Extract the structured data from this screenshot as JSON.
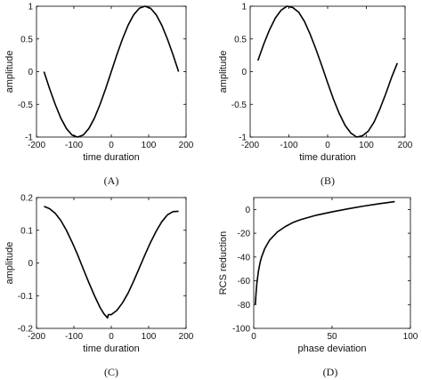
{
  "chart_data": [
    {
      "type": "line",
      "panel_label": "(A)",
      "xlabel": "time duration",
      "ylabel": "amplitude",
      "xlim": [
        -200,
        200
      ],
      "ylim": [
        -1,
        1
      ],
      "xticks": [
        -200,
        -100,
        0,
        100,
        200
      ],
      "yticks": [
        -1,
        -0.5,
        0,
        0.5,
        1
      ],
      "xtick_labels": [
        "-200",
        "-100",
        "0",
        "100",
        "200"
      ],
      "ytick_labels": [
        "-1",
        "-0.5",
        "0",
        "0.5",
        "1"
      ],
      "grid": false,
      "series": [
        {
          "x": [
            -180,
            -165,
            -150,
            -135,
            -120,
            -105,
            -90,
            -75,
            -60,
            -45,
            -30,
            -15,
            0,
            15,
            30,
            45,
            60,
            75,
            90,
            105,
            120,
            135,
            150,
            165,
            180
          ],
          "y": [
            0,
            -0.26,
            -0.5,
            -0.71,
            -0.87,
            -0.97,
            -1,
            -0.97,
            -0.87,
            -0.71,
            -0.5,
            -0.26,
            0,
            0.26,
            0.5,
            0.71,
            0.87,
            0.97,
            1,
            0.97,
            0.87,
            0.71,
            0.5,
            0.26,
            0
          ]
        }
      ]
    },
    {
      "type": "line",
      "panel_label": "(B)",
      "xlabel": "time duration",
      "ylabel": "amplitude",
      "xlim": [
        -200,
        200
      ],
      "ylim": [
        -1,
        1
      ],
      "xticks": [
        -200,
        -100,
        0,
        100,
        200
      ],
      "yticks": [
        -1,
        -0.5,
        0,
        0.5,
        1
      ],
      "xtick_labels": [
        "-200",
        "-100",
        "0",
        "100",
        "200"
      ],
      "ytick_labels": [
        "-1",
        "-0.5",
        "0",
        "0.5",
        "1"
      ],
      "grid": false,
      "series": [
        {
          "x": [
            -180,
            -165,
            -150,
            -135,
            -120,
            -105,
            -90,
            -75,
            -60,
            -45,
            -30,
            -15,
            0,
            15,
            30,
            45,
            60,
            75,
            90,
            105,
            120,
            135,
            150,
            165,
            180
          ],
          "y": [
            0.17,
            0.42,
            0.64,
            0.82,
            0.94,
            1,
            0.98,
            0.91,
            0.77,
            0.57,
            0.34,
            0.09,
            -0.17,
            -0.42,
            -0.64,
            -0.82,
            -0.94,
            -1,
            -0.98,
            -0.91,
            -0.77,
            -0.57,
            -0.34,
            -0.09,
            0.13
          ]
        }
      ]
    },
    {
      "type": "line",
      "panel_label": "(C)",
      "xlabel": "time duration",
      "ylabel": "amplitude",
      "xlim": [
        -200,
        200
      ],
      "ylim": [
        -0.2,
        0.2
      ],
      "xticks": [
        -200,
        -100,
        0,
        100,
        200
      ],
      "yticks": [
        -0.2,
        -0.1,
        0,
        0.1,
        0.2
      ],
      "xtick_labels": [
        "-200",
        "-100",
        "0",
        "100",
        "200"
      ],
      "ytick_labels": [
        "-0.2",
        "-0.1",
        "0",
        "0.1",
        "0.2"
      ],
      "grid": false,
      "series": [
        {
          "x": [
            -180,
            -165,
            -150,
            -135,
            -120,
            -105,
            -90,
            -75,
            -60,
            -45,
            -30,
            -20,
            -10,
            -8,
            0,
            15,
            30,
            45,
            60,
            75,
            90,
            105,
            120,
            135,
            150,
            165,
            180
          ],
          "y": [
            0.173,
            0.166,
            0.152,
            0.13,
            0.1,
            0.064,
            0.025,
            -0.018,
            -0.06,
            -0.1,
            -0.136,
            -0.155,
            -0.168,
            -0.158,
            -0.158,
            -0.145,
            -0.122,
            -0.092,
            -0.055,
            -0.015,
            0.025,
            0.063,
            0.097,
            0.126,
            0.147,
            0.157,
            0.158
          ]
        }
      ]
    },
    {
      "type": "line",
      "panel_label": "(D)",
      "xlabel": "phase deviation",
      "ylabel": "RCS reduction",
      "xlim": [
        0,
        100
      ],
      "ylim": [
        -100,
        10
      ],
      "xticks": [
        0,
        50,
        100
      ],
      "yticks": [
        -100,
        -80,
        -60,
        -40,
        -20,
        0
      ],
      "xtick_labels": [
        "0",
        "50",
        "100"
      ],
      "ytick_labels": [
        "-100",
        "-80",
        "-60",
        "-40",
        "-20",
        "0"
      ],
      "grid": false,
      "series": [
        {
          "x": [
            1,
            1.5,
            2,
            3,
            4,
            5,
            7,
            10,
            15,
            20,
            25,
            30,
            40,
            50,
            60,
            70,
            80,
            90
          ],
          "y": [
            -80,
            -70,
            -62,
            -52,
            -45,
            -40,
            -33,
            -26,
            -19,
            -14.5,
            -11,
            -8.5,
            -4.8,
            -2,
            0.5,
            2.8,
            4.8,
            6.6
          ]
        }
      ]
    }
  ]
}
